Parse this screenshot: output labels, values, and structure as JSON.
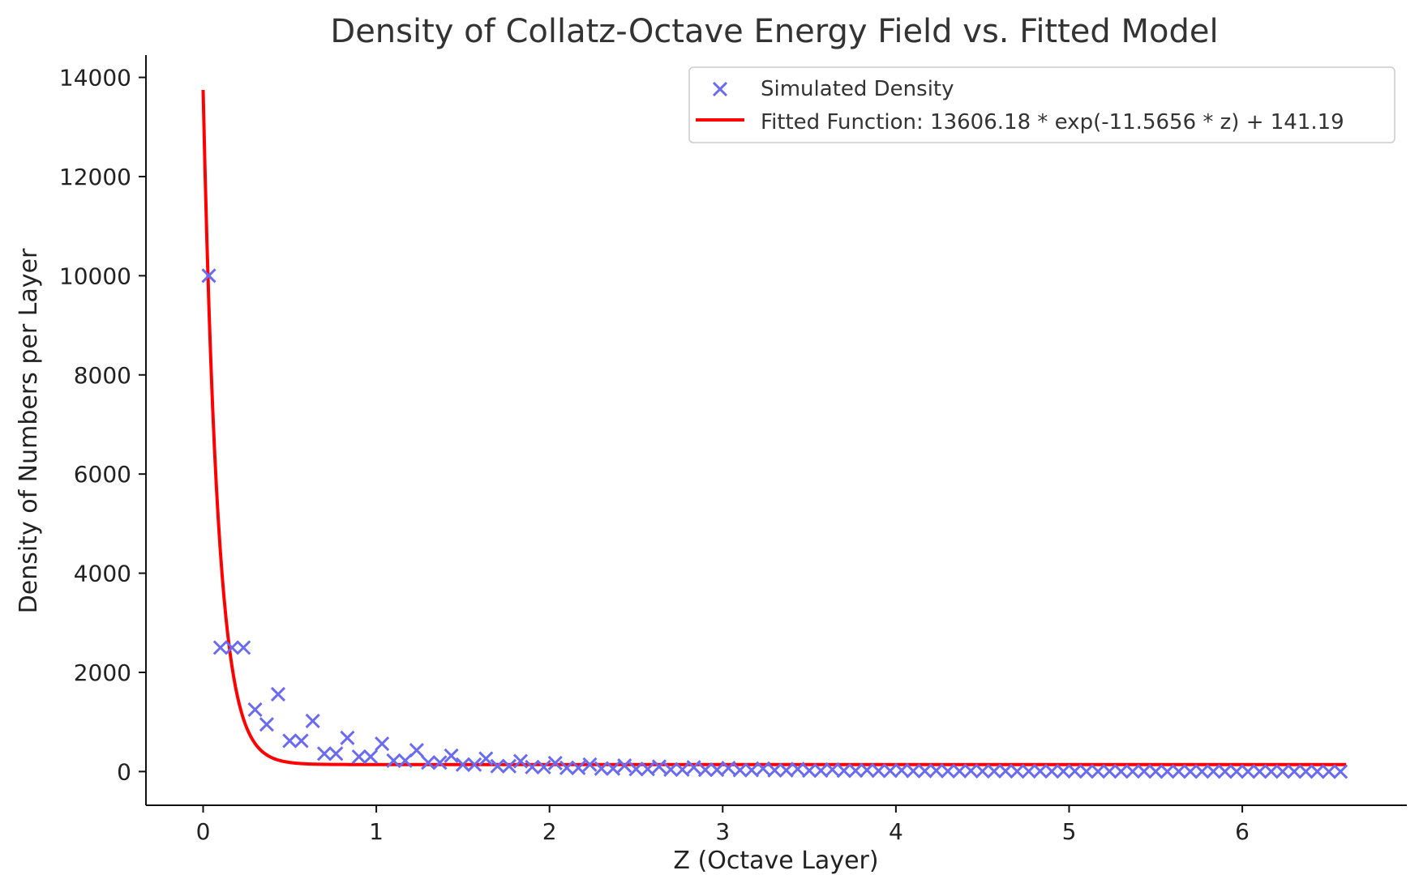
{
  "chart_data": {
    "type": "scatter",
    "title": "Density of Collatz-Octave Energy Field vs. Fitted Model",
    "xlabel": "Z (Octave Layer)",
    "ylabel": "Density of Numbers per Layer",
    "xlim": [
      -0.33,
      6.95
    ],
    "ylim": [
      -680,
      14450
    ],
    "xticks": [
      0,
      1,
      2,
      3,
      4,
      5,
      6
    ],
    "xtick_labels": [
      "0",
      "1",
      "2",
      "3",
      "4",
      "5",
      "6"
    ],
    "yticks": [
      0,
      2000,
      4000,
      6000,
      8000,
      10000,
      12000,
      14000
    ],
    "ytick_labels": [
      "0",
      "2000",
      "4000",
      "6000",
      "8000",
      "10000",
      "12000",
      "14000"
    ],
    "grid": false,
    "legend_position": "upper right",
    "colors": {
      "scatter": "#6b6bf0",
      "fit_line": "#ff0000",
      "axes": "#111111"
    },
    "series": [
      {
        "name": "Simulated Density",
        "kind": "scatter",
        "marker": "x",
        "points": [
          [
            0.033,
            10000
          ],
          [
            0.1,
            2500
          ],
          [
            0.167,
            2500
          ],
          [
            0.233,
            2500
          ],
          [
            0.3,
            1250
          ],
          [
            0.367,
            950
          ],
          [
            0.433,
            1560
          ],
          [
            0.5,
            620
          ],
          [
            0.567,
            620
          ],
          [
            0.633,
            1020
          ],
          [
            0.7,
            360
          ],
          [
            0.767,
            360
          ],
          [
            0.833,
            680
          ],
          [
            0.9,
            300
          ],
          [
            0.967,
            300
          ],
          [
            1.033,
            560
          ],
          [
            1.1,
            220
          ],
          [
            1.167,
            220
          ],
          [
            1.233,
            430
          ],
          [
            1.3,
            180
          ],
          [
            1.367,
            180
          ],
          [
            1.433,
            320
          ],
          [
            1.5,
            140
          ],
          [
            1.567,
            140
          ],
          [
            1.633,
            260
          ],
          [
            1.7,
            110
          ],
          [
            1.767,
            110
          ],
          [
            1.833,
            210
          ],
          [
            1.9,
            90
          ],
          [
            1.967,
            90
          ],
          [
            2.033,
            170
          ],
          [
            2.1,
            75
          ],
          [
            2.167,
            75
          ],
          [
            2.233,
            140
          ],
          [
            2.3,
            60
          ],
          [
            2.367,
            60
          ],
          [
            2.433,
            120
          ],
          [
            2.5,
            50
          ],
          [
            2.567,
            50
          ],
          [
            2.633,
            100
          ],
          [
            2.7,
            40
          ],
          [
            2.767,
            40
          ],
          [
            2.833,
            85
          ],
          [
            2.9,
            35
          ],
          [
            2.967,
            35
          ],
          [
            3.033,
            70
          ],
          [
            3.1,
            30
          ],
          [
            3.167,
            30
          ],
          [
            3.233,
            60
          ],
          [
            3.3,
            25
          ],
          [
            3.367,
            25
          ],
          [
            3.433,
            50
          ],
          [
            3.5,
            20
          ],
          [
            3.567,
            20
          ],
          [
            3.633,
            40
          ],
          [
            3.7,
            18
          ],
          [
            3.767,
            18
          ],
          [
            3.833,
            30
          ],
          [
            3.9,
            15
          ],
          [
            3.967,
            15
          ],
          [
            4.033,
            25
          ],
          [
            4.1,
            12
          ],
          [
            4.167,
            12
          ],
          [
            4.233,
            20
          ],
          [
            4.3,
            10
          ],
          [
            4.367,
            10
          ],
          [
            4.433,
            15
          ],
          [
            4.5,
            8
          ],
          [
            4.567,
            8
          ],
          [
            4.633,
            12
          ],
          [
            4.7,
            6
          ],
          [
            4.767,
            6
          ],
          [
            4.833,
            10
          ],
          [
            4.9,
            5
          ],
          [
            4.967,
            5
          ],
          [
            5.033,
            8
          ],
          [
            5.1,
            4
          ],
          [
            5.167,
            4
          ],
          [
            5.233,
            6
          ],
          [
            5.3,
            3
          ],
          [
            5.367,
            3
          ],
          [
            5.433,
            5
          ],
          [
            5.5,
            2
          ],
          [
            5.567,
            2
          ],
          [
            5.633,
            4
          ],
          [
            5.7,
            2
          ],
          [
            5.767,
            2
          ],
          [
            5.833,
            3
          ],
          [
            5.9,
            1
          ],
          [
            5.967,
            1
          ],
          [
            6.033,
            2
          ],
          [
            6.1,
            1
          ],
          [
            6.167,
            1
          ],
          [
            6.233,
            1
          ],
          [
            6.3,
            1
          ],
          [
            6.367,
            1
          ],
          [
            6.433,
            1
          ],
          [
            6.5,
            0
          ],
          [
            6.567,
            0
          ]
        ]
      },
      {
        "name": "Fitted Function: 13606.18 * exp(-11.5656 * z) + 141.19",
        "kind": "line",
        "function": {
          "a": 13606.18,
          "b": -11.5656,
          "c": 141.19
        },
        "x_range": [
          0.0,
          6.6
        ]
      }
    ]
  }
}
